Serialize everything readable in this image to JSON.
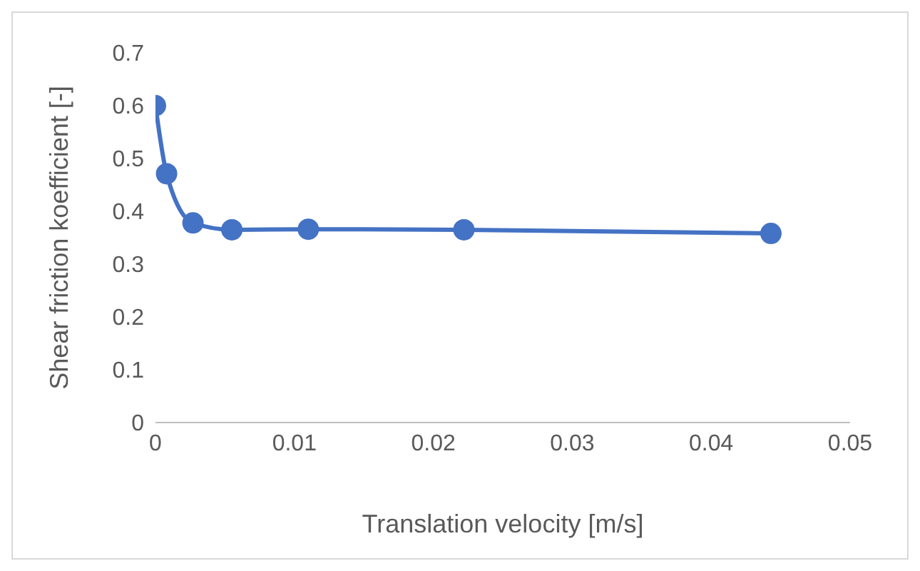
{
  "chart_data": {
    "type": "line",
    "xlabel": "Translation velocity [m/s]",
    "ylabel": "Shear friction koefficient [-]",
    "x": [
      0,
      0.0008,
      0.0027,
      0.0055,
      0.011,
      0.0222,
      0.0443
    ],
    "series": [
      {
        "color": "#4472c4",
        "values": [
          0.6,
          0.471,
          0.378,
          0.365,
          0.366,
          0.365,
          0.358
        ]
      }
    ],
    "xlim": [
      0,
      0.05
    ],
    "xticks": [
      0,
      0.01,
      0.02,
      0.03,
      0.04,
      0.05
    ],
    "ylim": [
      0,
      0.7
    ],
    "yticks": [
      0,
      0.1,
      0.2,
      0.3,
      0.4,
      0.5,
      0.6,
      0.7
    ],
    "grid": false,
    "legend": false,
    "marker": "circle",
    "line_style": "solid"
  }
}
